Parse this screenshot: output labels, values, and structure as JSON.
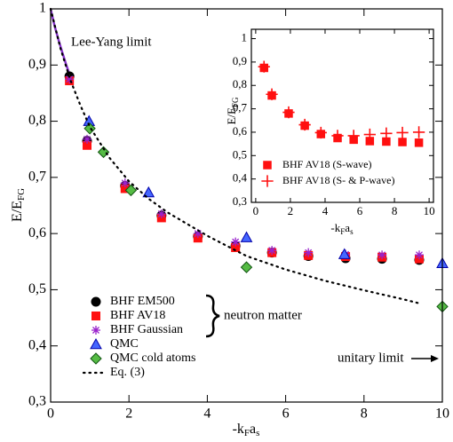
{
  "chart_data": [
    {
      "type": "scatter",
      "ylabel": [
        "E/E",
        "FG"
      ],
      "xlabel": [
        "-k",
        "F",
        "a",
        "s"
      ],
      "xlim": [
        0,
        10
      ],
      "ylim": [
        0.3,
        1
      ],
      "xticks": [
        0,
        2,
        4,
        6,
        8,
        10
      ],
      "yticks": [
        {
          "value": 0.3,
          "label": "0,3"
        },
        {
          "value": 0.4,
          "label": "0,4"
        },
        {
          "value": 0.5,
          "label": "0,5"
        },
        {
          "value": 0.6,
          "label": "0,6"
        },
        {
          "value": 0.7,
          "label": "0,7"
        },
        {
          "value": 0.8,
          "label": "0,8"
        },
        {
          "value": 0.9,
          "label": "0,9"
        },
        1
      ],
      "annotations": [
        "Lee-Yang limit",
        "neutron matter",
        "unitary limit"
      ],
      "lee_yang_curve": {
        "color": "#8833cc",
        "x": [
          0,
          0.1,
          0.2,
          0.3,
          0.4,
          0.5
        ],
        "values": [
          1,
          0.97,
          0.945,
          0.922,
          0.9,
          0.88
        ]
      },
      "series": [
        {
          "name": "BHF EM500",
          "marker": "circle",
          "color": "#000000",
          "x": [
            0.48,
            0.93,
            1.9,
            2.83,
            3.76,
            4.72,
            5.65,
            6.58,
            7.53,
            8.46,
            9.41
          ],
          "values": [
            0.88,
            0.765,
            0.685,
            0.632,
            0.595,
            0.578,
            0.566,
            0.56,
            0.556,
            0.555,
            0.553
          ]
        },
        {
          "name": "BHF AV18",
          "marker": "square",
          "color": "#ff1010",
          "x": [
            0.48,
            0.93,
            1.9,
            2.83,
            3.76,
            4.72,
            5.65,
            6.58,
            7.53,
            8.46,
            9.41
          ],
          "values": [
            0.872,
            0.757,
            0.68,
            0.628,
            0.592,
            0.575,
            0.566,
            0.561,
            0.559,
            0.558,
            0.555
          ]
        },
        {
          "name": "BHF Gaussian",
          "marker": "star",
          "color": "#9922cc",
          "x": [
            0.48,
            0.93,
            1.9,
            2.83,
            3.76,
            4.72,
            5.65,
            6.58,
            7.53,
            8.46,
            9.41
          ],
          "values": [
            0.875,
            0.768,
            0.69,
            0.635,
            0.6,
            0.585,
            0.57,
            0.566,
            0.563,
            0.562,
            0.562
          ]
        },
        {
          "name": "QMC",
          "marker": "triangle",
          "color": "#4466ff",
          "x": [
            0.98,
            2.5,
            5.0,
            7.5,
            10.0
          ],
          "values": [
            0.8,
            0.673,
            0.593,
            0.563,
            0.547
          ]
        },
        {
          "name": "QMC cold atoms",
          "marker": "diamond",
          "color": "#55bb44",
          "x": [
            1.0,
            1.35,
            2.05,
            5.0,
            10.0
          ],
          "values": [
            0.787,
            0.745,
            0.677,
            0.54,
            0.47
          ]
        },
        {
          "name": "Eq. (3)",
          "marker": "dotted-line",
          "color": "#000000",
          "x": [
            0,
            0.25,
            0.5,
            0.75,
            1,
            1.5,
            2,
            2.5,
            3,
            4,
            5,
            6,
            7,
            8,
            9,
            9.4
          ],
          "values": [
            1,
            0.93,
            0.874,
            0.83,
            0.79,
            0.735,
            0.693,
            0.662,
            0.637,
            0.596,
            0.56,
            0.536,
            0.516,
            0.499,
            0.483,
            0.476
          ]
        }
      ]
    },
    {
      "type": "scatter",
      "ylabel": [
        "E/E",
        "FG"
      ],
      "xlabel": [
        "-k",
        "F",
        "a",
        "s"
      ],
      "xlim": [
        -0.25,
        10.25
      ],
      "ylim": [
        0.3,
        1.04
      ],
      "xticks": [
        0,
        2,
        4,
        6,
        8,
        10
      ],
      "yticks": [
        {
          "value": 0.3,
          "label": "0,3"
        },
        {
          "value": 0.4,
          "label": "0,4"
        },
        {
          "value": 0.5,
          "label": "0,5"
        },
        {
          "value": 0.6,
          "label": "0,6"
        },
        {
          "value": 0.7,
          "label": "0,7"
        },
        {
          "value": 0.8,
          "label": "0,8"
        },
        {
          "value": 0.9,
          "label": "0,9"
        },
        1
      ],
      "series": [
        {
          "name": "BHF AV18 (S-wave)",
          "marker": "square",
          "color": "#ff1010",
          "x": [
            0.48,
            0.93,
            1.9,
            2.83,
            3.76,
            4.72,
            5.65,
            6.58,
            7.53,
            8.46,
            9.41
          ],
          "values": [
            0.875,
            0.757,
            0.68,
            0.628,
            0.592,
            0.575,
            0.568,
            0.562,
            0.56,
            0.558,
            0.555
          ]
        },
        {
          "name": "BHF AV18 (S- & P-wave)",
          "marker": "plus",
          "color": "#ff1010",
          "x": [
            0.48,
            0.93,
            1.9,
            2.83,
            3.76,
            4.72,
            5.65,
            6.58,
            7.53,
            8.46,
            9.41
          ],
          "values": [
            0.88,
            0.762,
            0.685,
            0.632,
            0.598,
            0.585,
            0.585,
            0.59,
            0.595,
            0.598,
            0.6
          ]
        }
      ]
    }
  ]
}
